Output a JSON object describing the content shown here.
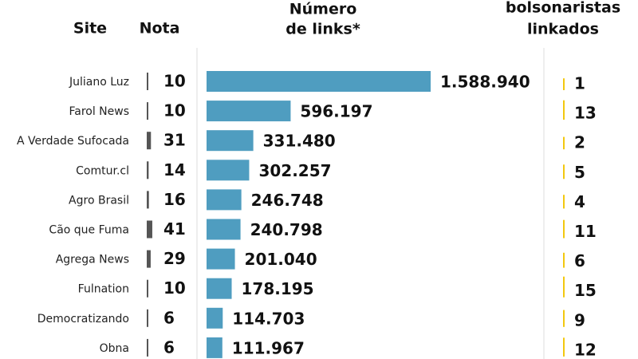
{
  "chart_data": {
    "type": "bar",
    "headers": {
      "site": "Site",
      "nota": "Nota",
      "links": [
        "Número",
        "de links*"
      ],
      "bolsonaristas": [
        "bolsonaristas",
        "linkados"
      ]
    },
    "categories": [
      "Juliano Luz",
      "Farol News",
      "A Verdade Sufocada",
      "Comtur.cl",
      "Agro Brasil",
      "Cão que Fuma",
      "Agrega News",
      "Fulnation",
      "Democratizando",
      "Obna"
    ],
    "nota": [
      10,
      10,
      31,
      14,
      16,
      41,
      29,
      10,
      6,
      6
    ],
    "values": [
      1588940,
      596197,
      331480,
      302257,
      246748,
      240798,
      201040,
      178195,
      114703,
      111967
    ],
    "value_labels": [
      "1.588.940",
      "596.197",
      "331.480",
      "302.257",
      "246.748",
      "240.798",
      "201.040",
      "178.195",
      "114.703",
      "111.967"
    ],
    "bolsonaristas": [
      1,
      13,
      2,
      5,
      4,
      11,
      6,
      15,
      9,
      12
    ],
    "color": "#4f9dc0",
    "nota_color": "#555555",
    "bolsonaristas_color": "#f2c80f"
  }
}
